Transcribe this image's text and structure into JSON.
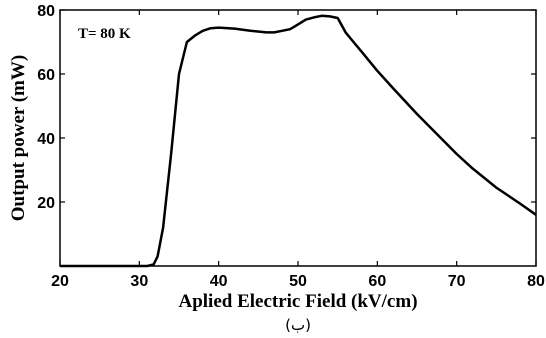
{
  "chart_data": {
    "type": "line",
    "title": "",
    "xlabel": "Aplied Electric Field (kV/cm)",
    "ylabel": "Output power (mW)",
    "xlim": [
      20,
      80
    ],
    "ylim": [
      0,
      80
    ],
    "xticks": [
      20,
      30,
      40,
      50,
      60,
      70,
      80
    ],
    "yticks": [
      20,
      40,
      60,
      80
    ],
    "grid": false,
    "annotation": "T= 80 K",
    "caption": "(ب)",
    "line_color": "#000000",
    "series": [
      {
        "x": [
          20,
          30,
          31,
          31.8,
          32.3,
          33,
          34,
          35,
          36,
          37,
          38,
          39,
          40,
          42,
          44,
          46,
          47,
          48,
          49,
          50,
          51,
          52,
          53,
          54,
          55,
          56,
          57,
          58,
          60,
          62,
          65,
          68,
          70,
          72,
          75,
          78,
          80
        ],
        "y": [
          0,
          0,
          0,
          0.5,
          3,
          12,
          35,
          60,
          70,
          72,
          73.5,
          74.3,
          74.5,
          74.2,
          73.5,
          73,
          73,
          73.5,
          74,
          75.5,
          77,
          77.7,
          78.2,
          78,
          77.5,
          73,
          70,
          67,
          61,
          55.5,
          47.5,
          40,
          35,
          30.5,
          24.5,
          19.5,
          16
        ]
      }
    ]
  }
}
